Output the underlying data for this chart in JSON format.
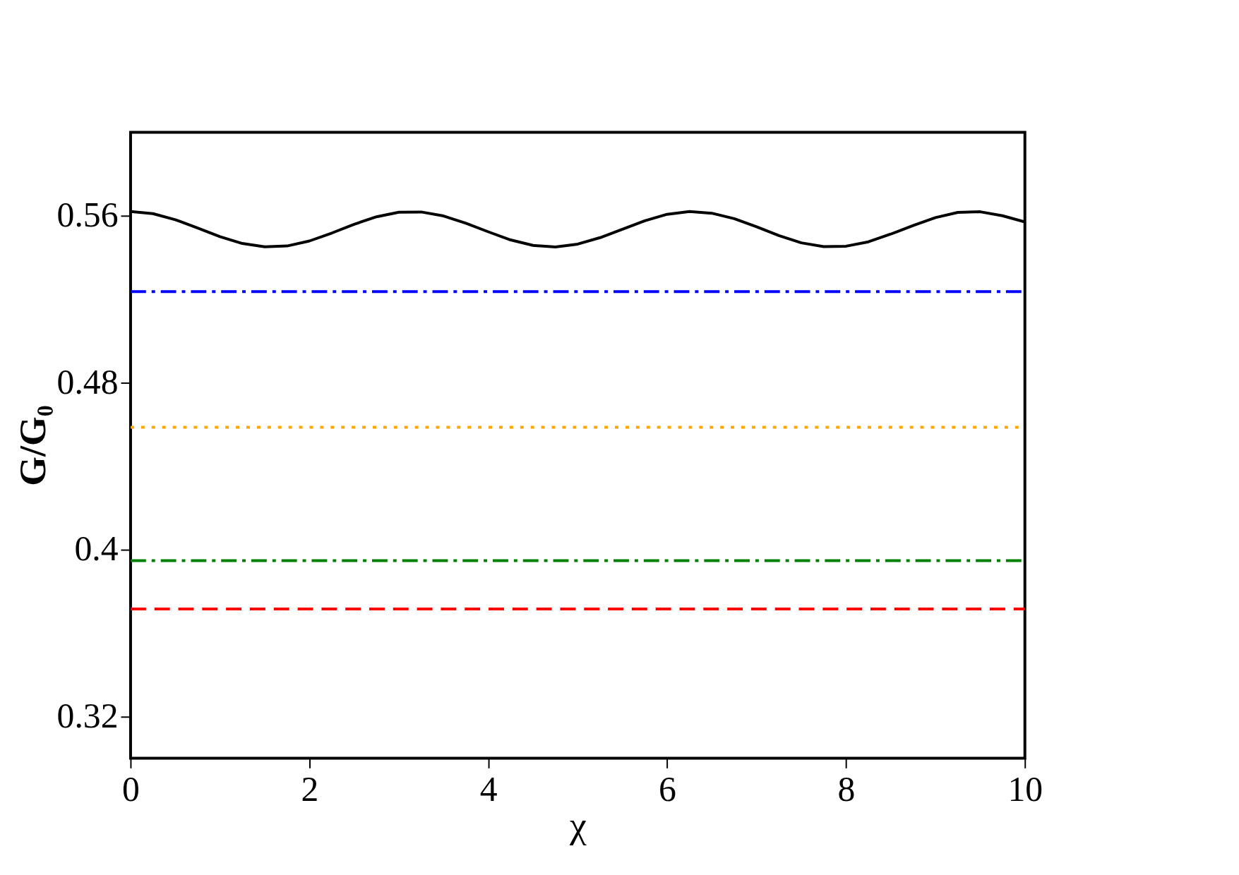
{
  "chart_data": {
    "type": "line",
    "xlabel": "χ",
    "ylabel": "G/G₀",
    "xlim": [
      0,
      10
    ],
    "ylim": [
      0.3,
      0.6
    ],
    "xticks": [
      0,
      2,
      4,
      6,
      8,
      10
    ],
    "yticks": [
      0.32,
      0.4,
      0.48,
      0.56
    ],
    "grid": false,
    "legend": false,
    "series": [
      {
        "color": "#000000",
        "line_style": "solid",
        "x": [
          0,
          0.25,
          0.5,
          0.75,
          1,
          1.25,
          1.5,
          1.75,
          2,
          2.25,
          2.5,
          2.75,
          3,
          3.25,
          3.5,
          3.75,
          4,
          4.25,
          4.5,
          4.75,
          5,
          5.25,
          5.5,
          5.75,
          6,
          6.25,
          6.5,
          6.75,
          7,
          7.25,
          7.5,
          7.75,
          8,
          8.25,
          8.5,
          8.75,
          9,
          9.25,
          9.5,
          9.75,
          10
        ],
        "values": [
          0.562,
          0.561,
          0.5581,
          0.5541,
          0.55,
          0.5467,
          0.5451,
          0.5455,
          0.5479,
          0.5517,
          0.5559,
          0.5595,
          0.5617,
          0.5618,
          0.5599,
          0.5564,
          0.5523,
          0.5484,
          0.5458,
          0.545,
          0.5464,
          0.5495,
          0.5535,
          0.5576,
          0.5607,
          0.562,
          0.5612,
          0.5586,
          0.5547,
          0.5505,
          0.547,
          0.5452,
          0.5454,
          0.5475,
          0.5512,
          0.5553,
          0.5591,
          0.5616,
          0.5619,
          0.56,
          0.557
        ]
      },
      {
        "color": "#0000ff",
        "line_style": "dashdot",
        "x": [
          0,
          10
        ],
        "values": [
          0.5236,
          0.5236
        ]
      },
      {
        "color": "#ffa500",
        "line_style": "dotted",
        "x": [
          0,
          10
        ],
        "values": [
          0.4586,
          0.4586
        ]
      },
      {
        "color": "#008000",
        "line_style": "dashdot",
        "x": [
          0,
          10
        ],
        "values": [
          0.3947,
          0.3947
        ]
      },
      {
        "color": "#ff0000",
        "line_style": "dashed",
        "x": [
          0,
          10
        ],
        "values": [
          0.3715,
          0.3715
        ]
      }
    ]
  }
}
